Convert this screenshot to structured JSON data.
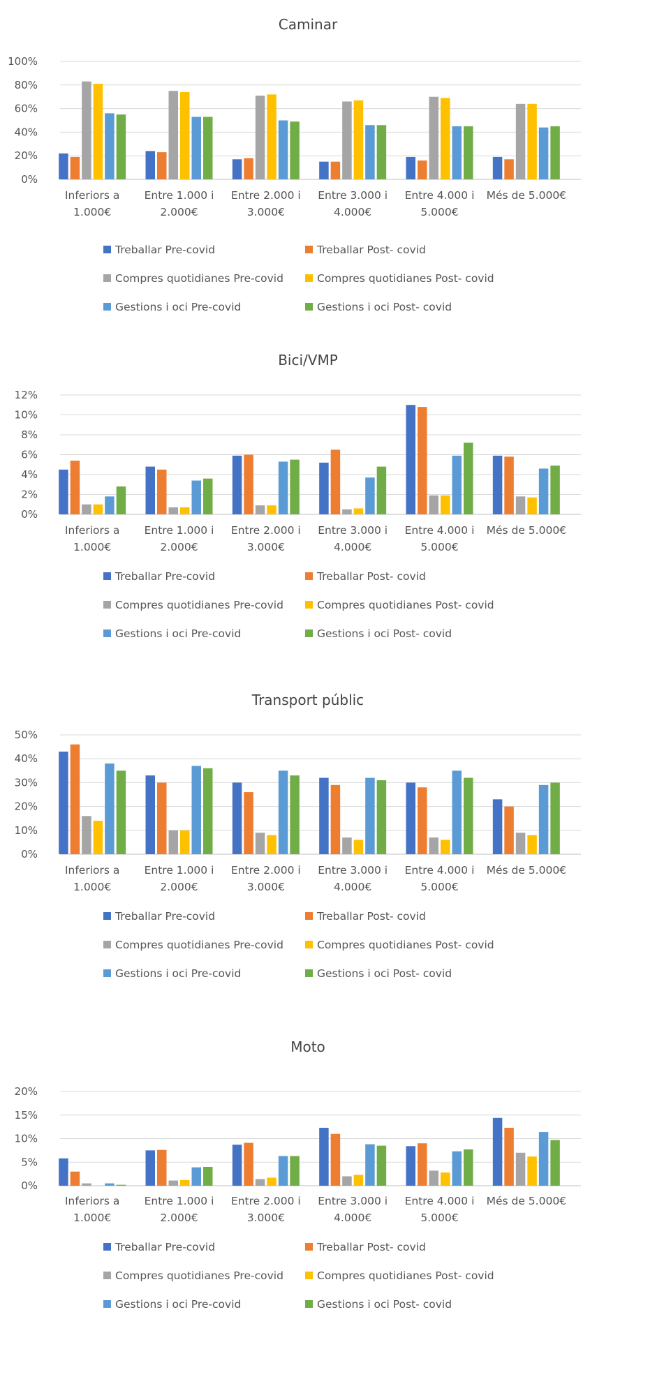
{
  "series_meta": [
    {
      "name": "Treballar Pre-covid",
      "color": "#4472C4"
    },
    {
      "name": "Treballar Post- covid",
      "color": "#ED7D31"
    },
    {
      "name": "Compres quotidianes Pre-covid",
      "color": "#A5A5A5"
    },
    {
      "name": "Compres quotidianes Post- covid",
      "color": "#FFC000"
    },
    {
      "name": "Gestions i oci Pre-covid",
      "color": "#5B9BD5"
    },
    {
      "name": "Gestions i oci Post- covid",
      "color": "#70AD47"
    }
  ],
  "chart_data": [
    {
      "type": "bar",
      "title": "Caminar",
      "categories": [
        [
          "Inferiors a",
          "1.000€"
        ],
        [
          "Entre 1.000 i",
          "2.000€"
        ],
        [
          "Entre 2.000 i",
          "3.000€"
        ],
        [
          "Entre 3.000 i",
          "4.000€"
        ],
        [
          "Entre 4.000 i",
          "5.000€"
        ],
        [
          "Més de 5.000€"
        ]
      ],
      "ylim": [
        0,
        1
      ],
      "yticks": [
        0,
        0.2,
        0.4,
        0.6,
        0.8,
        1.0
      ],
      "ytick_labels": [
        "0%",
        "20%",
        "40%",
        "60%",
        "80%",
        "100%"
      ],
      "grid": true,
      "legend": "bottom",
      "series": [
        {
          "name": "Treballar Pre-covid",
          "values": [
            0.22,
            0.24,
            0.17,
            0.15,
            0.19,
            0.19
          ]
        },
        {
          "name": "Treballar Post- covid",
          "values": [
            0.19,
            0.23,
            0.18,
            0.15,
            0.16,
            0.17
          ]
        },
        {
          "name": "Compres quotidianes Pre-covid",
          "values": [
            0.83,
            0.75,
            0.71,
            0.66,
            0.7,
            0.64
          ]
        },
        {
          "name": "Compres quotidianes Post- covid",
          "values": [
            0.81,
            0.74,
            0.72,
            0.67,
            0.69,
            0.64
          ]
        },
        {
          "name": "Gestions i oci Pre-covid",
          "values": [
            0.56,
            0.53,
            0.5,
            0.46,
            0.45,
            0.44
          ]
        },
        {
          "name": "Gestions i oci Post- covid",
          "values": [
            0.55,
            0.53,
            0.49,
            0.46,
            0.45,
            0.45
          ]
        }
      ]
    },
    {
      "type": "bar",
      "title": "Bici/VMP",
      "categories": [
        [
          "Inferiors a",
          "1.000€"
        ],
        [
          "Entre 1.000 i",
          "2.000€"
        ],
        [
          "Entre 2.000 i",
          "3.000€"
        ],
        [
          "Entre 3.000 i",
          "4.000€"
        ],
        [
          "Entre 4.000 i",
          "5.000€"
        ],
        [
          "Més de 5.000€"
        ]
      ],
      "ylim": [
        0,
        0.12
      ],
      "yticks": [
        0,
        0.02,
        0.04,
        0.06,
        0.08,
        0.1,
        0.12
      ],
      "ytick_labels": [
        "0%",
        "2%",
        "4%",
        "6%",
        "8%",
        "10%",
        "12%"
      ],
      "grid": true,
      "legend": "bottom",
      "series": [
        {
          "name": "Treballar Pre-covid",
          "values": [
            0.045,
            0.048,
            0.059,
            0.052,
            0.11,
            0.059
          ]
        },
        {
          "name": "Treballar Post- covid",
          "values": [
            0.054,
            0.045,
            0.06,
            0.065,
            0.108,
            0.058
          ]
        },
        {
          "name": "Compres quotidianes Pre-covid",
          "values": [
            0.01,
            0.007,
            0.009,
            0.005,
            0.019,
            0.018
          ]
        },
        {
          "name": "Compres quotidianes Post- covid",
          "values": [
            0.01,
            0.007,
            0.009,
            0.006,
            0.019,
            0.017
          ]
        },
        {
          "name": "Gestions i oci Pre-covid",
          "values": [
            0.018,
            0.034,
            0.053,
            0.037,
            0.059,
            0.046
          ]
        },
        {
          "name": "Gestions i oci Post- covid",
          "values": [
            0.028,
            0.036,
            0.055,
            0.048,
            0.072,
            0.049
          ]
        }
      ]
    },
    {
      "type": "bar",
      "title": "Transport públic",
      "categories": [
        [
          "Inferiors a",
          "1.000€"
        ],
        [
          "Entre 1.000 i",
          "2.000€"
        ],
        [
          "Entre 2.000 i",
          "3.000€"
        ],
        [
          "Entre 3.000 i",
          "4.000€"
        ],
        [
          "Entre 4.000 i",
          "5.000€"
        ],
        [
          "Més de 5.000€"
        ]
      ],
      "ylim": [
        0,
        0.5
      ],
      "yticks": [
        0,
        0.1,
        0.2,
        0.3,
        0.4,
        0.5
      ],
      "ytick_labels": [
        "0%",
        "10%",
        "20%",
        "30%",
        "40%",
        "50%"
      ],
      "grid": true,
      "legend": "bottom",
      "series": [
        {
          "name": "Treballar Pre-covid",
          "values": [
            0.43,
            0.33,
            0.3,
            0.32,
            0.3,
            0.23
          ]
        },
        {
          "name": "Treballar Post- covid",
          "values": [
            0.46,
            0.3,
            0.26,
            0.29,
            0.28,
            0.2
          ]
        },
        {
          "name": "Compres quotidianes Pre-covid",
          "values": [
            0.16,
            0.1,
            0.09,
            0.07,
            0.07,
            0.09
          ]
        },
        {
          "name": "Compres quotidianes Post- covid",
          "values": [
            0.14,
            0.1,
            0.08,
            0.06,
            0.06,
            0.08
          ]
        },
        {
          "name": "Gestions i oci Pre-covid",
          "values": [
            0.38,
            0.37,
            0.35,
            0.32,
            0.35,
            0.29
          ]
        },
        {
          "name": "Gestions i oci Post- covid",
          "values": [
            0.35,
            0.36,
            0.33,
            0.31,
            0.32,
            0.3
          ]
        }
      ]
    },
    {
      "type": "bar",
      "title": "Moto",
      "categories": [
        [
          "Inferiors a",
          "1.000€"
        ],
        [
          "Entre 1.000 i",
          "2.000€"
        ],
        [
          "Entre 2.000 i",
          "3.000€"
        ],
        [
          "Entre 3.000 i",
          "4.000€"
        ],
        [
          "Entre 4.000 i",
          "5.000€"
        ],
        [
          "Més de 5.000€"
        ]
      ],
      "ylim": [
        0,
        0.2
      ],
      "yticks": [
        0,
        0.05,
        0.1,
        0.15,
        0.2
      ],
      "ytick_labels": [
        "0%",
        "5%",
        "10%",
        "15%",
        "20%"
      ],
      "grid": true,
      "legend": "bottom",
      "series": [
        {
          "name": "Treballar Pre-covid",
          "values": [
            0.058,
            0.075,
            0.087,
            0.123,
            0.084,
            0.144
          ]
        },
        {
          "name": "Treballar Post- covid",
          "values": [
            0.03,
            0.076,
            0.091,
            0.11,
            0.09,
            0.123
          ]
        },
        {
          "name": "Compres quotidianes Pre-covid",
          "values": [
            0.005,
            0.011,
            0.014,
            0.02,
            0.032,
            0.07
          ]
        },
        {
          "name": "Compres quotidianes Post- covid",
          "values": [
            0.0,
            0.012,
            0.017,
            0.023,
            0.028,
            0.062
          ]
        },
        {
          "name": "Gestions i oci Pre-covid",
          "values": [
            0.005,
            0.039,
            0.063,
            0.088,
            0.073,
            0.114
          ]
        },
        {
          "name": "Gestions i oci Post- covid",
          "values": [
            0.002,
            0.04,
            0.063,
            0.085,
            0.077,
            0.097
          ]
        }
      ]
    }
  ]
}
